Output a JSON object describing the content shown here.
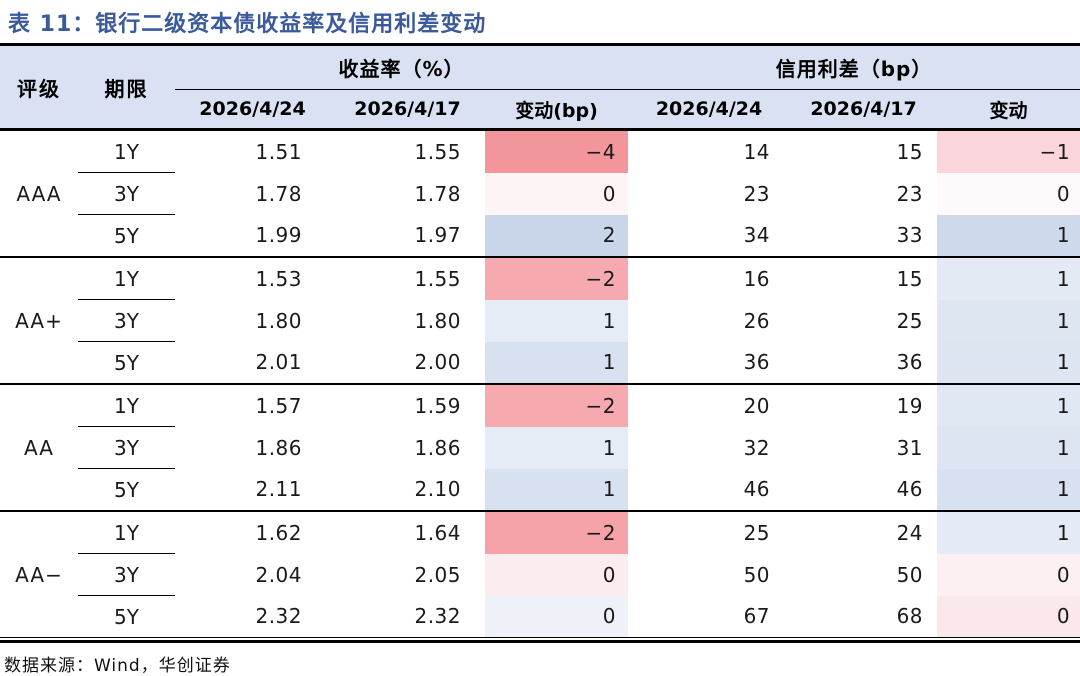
{
  "title": "表 11：银行二级资本债收益率及信用利差变动",
  "footer": {
    "source": "数据来源：Wind，华创证券"
  },
  "colors": {
    "title_text": "#3A5A9C",
    "header_bg": "#D9E1F2",
    "rule": "#000000",
    "negative_strong": "#F2969B",
    "negative_light": "#FAD6DC",
    "positive_strong": "#C9D6E9",
    "positive_light": "#E6ECF5"
  },
  "table": {
    "headers": {
      "rating": "评级",
      "term": "期限",
      "yield_group": "收益率（%）",
      "spread_group": "信用利差（bp）",
      "yield_cols": [
        "2026/4/24",
        "2026/4/17",
        "变动(bp)"
      ],
      "spread_cols": [
        "2026/4/24",
        "2026/4/17",
        "变动"
      ]
    },
    "groups": [
      {
        "rating": "AAA",
        "rows": [
          {
            "term": "1Y",
            "yield_new": "1.51",
            "yield_old": "1.55",
            "yield_chg": "−4",
            "yield_chg_bg": "#F2969B",
            "spread_new": "14",
            "spread_old": "15",
            "spread_chg": "−1",
            "spread_chg_bg": "#FAD6DC"
          },
          {
            "term": "3Y",
            "yield_new": "1.78",
            "yield_old": "1.78",
            "yield_chg": "0",
            "yield_chg_bg": "#FDF4F6",
            "spread_new": "23",
            "spread_old": "23",
            "spread_chg": "0",
            "spread_chg_bg": "#FEFAFB"
          },
          {
            "term": "5Y",
            "yield_new": "1.99",
            "yield_old": "1.97",
            "yield_chg": "2",
            "yield_chg_bg": "#C9D6E9",
            "spread_new": "34",
            "spread_old": "33",
            "spread_chg": "1",
            "spread_chg_bg": "#CEDAEC"
          }
        ]
      },
      {
        "rating": "AA+",
        "rows": [
          {
            "term": "1Y",
            "yield_new": "1.53",
            "yield_old": "1.55",
            "yield_chg": "−2",
            "yield_chg_bg": "#F6AAAF",
            "spread_new": "16",
            "spread_old": "15",
            "spread_chg": "1",
            "spread_chg_bg": "#E4EAF4"
          },
          {
            "term": "3Y",
            "yield_new": "1.80",
            "yield_old": "1.80",
            "yield_chg": "1",
            "yield_chg_bg": "#E6ECF5",
            "spread_new": "26",
            "spread_old": "25",
            "spread_chg": "1",
            "spread_chg_bg": "#DEE6F2"
          },
          {
            "term": "5Y",
            "yield_new": "2.01",
            "yield_old": "2.00",
            "yield_chg": "1",
            "yield_chg_bg": "#D8E1EF",
            "spread_new": "36",
            "spread_old": "36",
            "spread_chg": "1",
            "spread_chg_bg": "#DCE5F1"
          }
        ]
      },
      {
        "rating": "AA",
        "rows": [
          {
            "term": "1Y",
            "yield_new": "1.57",
            "yield_old": "1.59",
            "yield_chg": "−2",
            "yield_chg_bg": "#F6AAAF",
            "spread_new": "20",
            "spread_old": "19",
            "spread_chg": "1",
            "spread_chg_bg": "#E0E8F3"
          },
          {
            "term": "3Y",
            "yield_new": "1.86",
            "yield_old": "1.86",
            "yield_chg": "1",
            "yield_chg_bg": "#E6ECF5",
            "spread_new": "32",
            "spread_old": "31",
            "spread_chg": "1",
            "spread_chg_bg": "#DDE5F2"
          },
          {
            "term": "5Y",
            "yield_new": "2.11",
            "yield_old": "2.10",
            "yield_chg": "1",
            "yield_chg_bg": "#D8E1EF",
            "spread_new": "46",
            "spread_old": "46",
            "spread_chg": "1",
            "spread_chg_bg": "#D8E1F0"
          }
        ]
      },
      {
        "rating": "AA−",
        "rows": [
          {
            "term": "1Y",
            "yield_new": "1.62",
            "yield_old": "1.64",
            "yield_chg": "−2",
            "yield_chg_bg": "#F5A3A9",
            "spread_new": "25",
            "spread_old": "24",
            "spread_chg": "1",
            "spread_chg_bg": "#E5EBF6"
          },
          {
            "term": "3Y",
            "yield_new": "2.04",
            "yield_old": "2.05",
            "yield_chg": "0",
            "yield_chg_bg": "#FBECEF",
            "spread_new": "50",
            "spread_old": "50",
            "spread_chg": "0",
            "spread_chg_bg": "#FCF0F2"
          },
          {
            "term": "5Y",
            "yield_new": "2.32",
            "yield_old": "2.32",
            "yield_chg": "0",
            "yield_chg_bg": "#EEF1F8",
            "spread_new": "67",
            "spread_old": "68",
            "spread_chg": "0",
            "spread_chg_bg": "#FAE8EB"
          }
        ]
      }
    ]
  }
}
